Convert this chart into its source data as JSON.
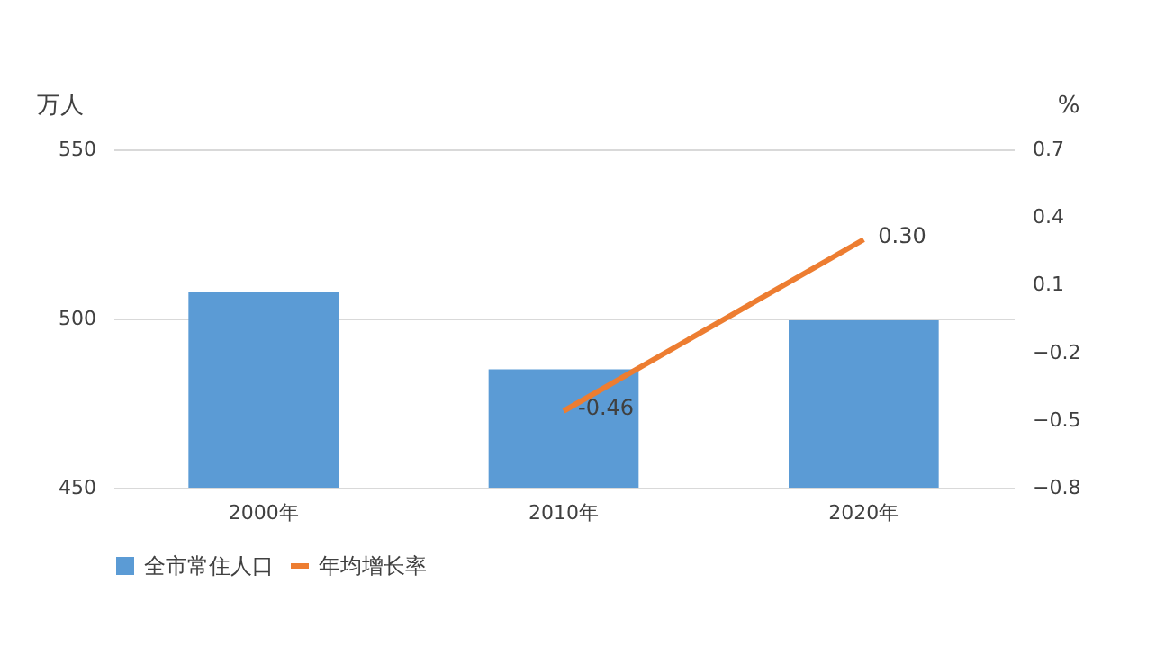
{
  "chart_data": {
    "type": "bar",
    "categories": [
      "2000年",
      "2010年",
      "2020年"
    ],
    "series": [
      {
        "name": "全市常住人口",
        "color": "#5b9bd5",
        "values": [
          508,
          485,
          499.5
        ]
      },
      {
        "name": "年均增长率",
        "type": "line",
        "axis": "y2",
        "color": "#ed7d31",
        "values": [
          null,
          -0.46,
          0.3
        ],
        "value_labels": [
          null,
          "-0.46",
          "0.30"
        ]
      }
    ],
    "ylabel": "万人",
    "y2label": "%",
    "ylim": [
      450,
      550
    ],
    "yticks": [
      450,
      500,
      550
    ],
    "y2lim": [
      -0.8,
      0.7
    ],
    "y2ticks": [
      -0.8,
      -0.5,
      -0.2,
      0.1,
      0.4,
      0.7
    ],
    "grid": "y",
    "legend": "bottom",
    "marker": "none",
    "line_style": "solid"
  }
}
